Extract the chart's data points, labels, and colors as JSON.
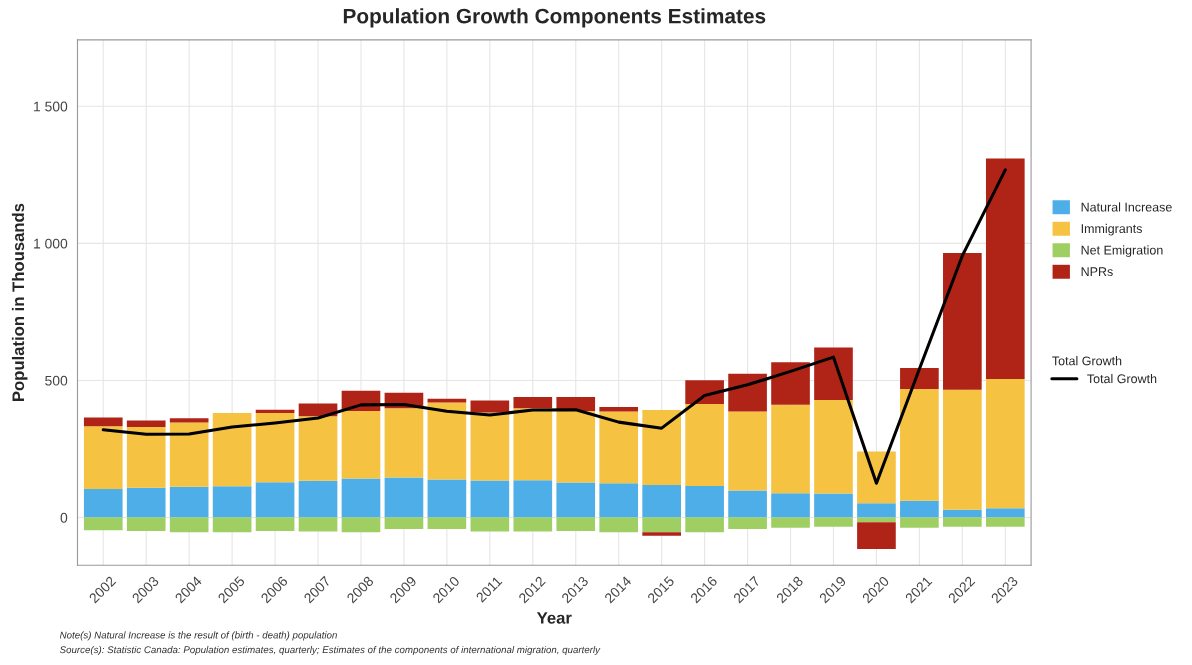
{
  "chart_data": {
    "type": "bar",
    "stacked": true,
    "title": "Population Growth Components Estimates",
    "xlabel": "Year",
    "ylabel": "Population in Thousands",
    "legend_title": "Total Growth",
    "categories": [
      "2002",
      "2003",
      "2004",
      "2005",
      "2006",
      "2007",
      "2008",
      "2009",
      "2010",
      "2011",
      "2012",
      "2013",
      "2014",
      "2015",
      "2016",
      "2017",
      "2018",
      "2019",
      "2020",
      "2021",
      "2022",
      "2023"
    ],
    "series": [
      {
        "name": "Natural Increase",
        "color": "#4eaee8",
        "values": [
          104,
          109,
          112,
          114,
          129,
          134,
          142,
          146,
          139,
          135,
          136,
          128,
          125,
          119,
          115,
          99,
          89,
          88,
          52,
          61,
          28,
          34
        ]
      },
      {
        "name": "Immigrants",
        "color": "#f5c242",
        "values": [
          229,
          221,
          235,
          267,
          252,
          235,
          247,
          253,
          281,
          248,
          263,
          261,
          262,
          273,
          299,
          288,
          322,
          341,
          189,
          408,
          438,
          471
        ]
      },
      {
        "name": "Net Emigration",
        "color": "#9fcf63",
        "values": [
          -46,
          -49,
          -54,
          -54,
          -49,
          -51,
          -54,
          -42,
          -42,
          -51,
          -51,
          -49,
          -54,
          -54,
          -54,
          -42,
          -37,
          -34,
          -17,
          -37,
          -34,
          -34
        ]
      },
      {
        "name": "NPRs",
        "color": "#b02418",
        "values": [
          32,
          24,
          15,
          0,
          12,
          47,
          73,
          56,
          13,
          44,
          41,
          51,
          16,
          -12,
          87,
          137,
          155,
          191,
          -98,
          76,
          499,
          804
        ]
      },
      {
        "name": "Total Growth",
        "type": "line",
        "color": "#000000",
        "values": [
          320,
          304,
          305,
          330,
          345,
          363,
          411,
          412,
          388,
          374,
          392,
          393,
          348,
          326,
          445,
          484,
          533,
          585,
          125,
          542,
          955,
          1268
        ]
      }
    ],
    "ylim": [
      -174,
      1742
    ],
    "yticks": [
      0,
      500,
      {
        "value": 1000,
        "label": "1 000"
      },
      {
        "value": 1500,
        "label": "1 500"
      }
    ],
    "grid": true,
    "legend": "right",
    "annotations": [
      "Note(s) Natural Increase is the result of (birth - death) population",
      "Source(s): Statistic Canada: Population estimates, quarterly; Estimates of the components of international migration, quarterly"
    ]
  }
}
